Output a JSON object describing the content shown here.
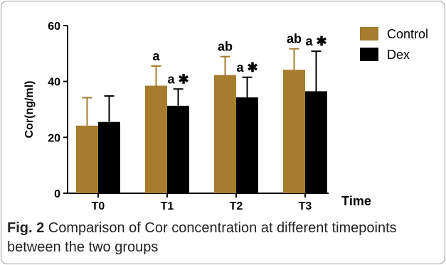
{
  "chart_data": {
    "type": "bar",
    "categories": [
      "T0",
      "T1",
      "T2",
      "T3"
    ],
    "series": [
      {
        "name": "Control",
        "color": "#a67c2e",
        "values": [
          24.2,
          38.5,
          42.3,
          44.2
        ],
        "errors": [
          10.0,
          7.0,
          6.6,
          7.5
        ],
        "labels": [
          "",
          "a",
          "ab",
          "ab"
        ]
      },
      {
        "name": "Dex",
        "color": "#000000",
        "values": [
          25.5,
          31.3,
          34.3,
          36.5
        ],
        "errors": [
          9.3,
          6.0,
          7.2,
          14.3
        ],
        "labels": [
          "",
          "a ✱",
          "a ✱",
          "a ✱"
        ]
      }
    ],
    "ylabel": "Cor(ng/ml)",
    "xlabel": "Time",
    "ylim": [
      0,
      60
    ],
    "yticks": [
      0,
      20,
      40,
      60
    ],
    "legend_position": "top-right",
    "grid": false
  },
  "caption": {
    "label": "Fig. 2",
    "text": " Comparison of Cor concentration at different timepoints between the two groups"
  }
}
